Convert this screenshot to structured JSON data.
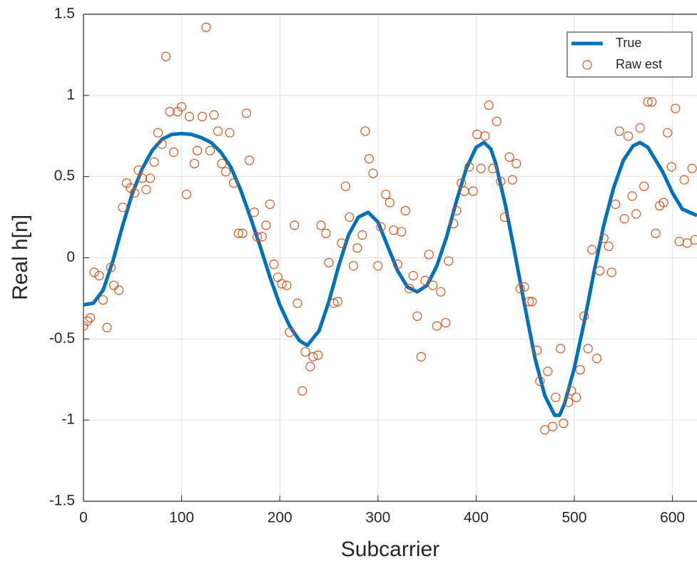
{
  "chart_data": {
    "type": "line",
    "xlabel": "Subcarrier",
    "ylabel": "Real h[n]",
    "xlim": [
      0,
      625
    ],
    "ylim": [
      -1.5,
      1.5
    ],
    "xticks": [
      0,
      100,
      200,
      300,
      400,
      500,
      600
    ],
    "yticks": [
      -1.5,
      -1,
      -0.5,
      0,
      0.5,
      1,
      1.5
    ],
    "grid": true,
    "legend": "upper right",
    "series": [
      {
        "name": "True",
        "color": "#0072BD",
        "mode": "line",
        "x": [
          0,
          10,
          20,
          30,
          40,
          50,
          60,
          70,
          80,
          90,
          100,
          110,
          120,
          130,
          140,
          150,
          160,
          170,
          180,
          190,
          200,
          210,
          220,
          228,
          240,
          250,
          260,
          270,
          280,
          290,
          300,
          310,
          320,
          330,
          340,
          350,
          360,
          370,
          380,
          390,
          400,
          408,
          415,
          420,
          430,
          440,
          450,
          460,
          470,
          480,
          485,
          490,
          500,
          510,
          520,
          530,
          540,
          550,
          560,
          567,
          575,
          590,
          600,
          610,
          625
        ],
        "values": [
          -0.29,
          -0.28,
          -0.2,
          -0.02,
          0.2,
          0.4,
          0.55,
          0.66,
          0.73,
          0.76,
          0.765,
          0.76,
          0.74,
          0.71,
          0.65,
          0.56,
          0.42,
          0.25,
          0.07,
          -0.12,
          -0.29,
          -0.42,
          -0.51,
          -0.54,
          -0.45,
          -0.27,
          -0.05,
          0.14,
          0.25,
          0.28,
          0.22,
          0.07,
          -0.08,
          -0.18,
          -0.21,
          -0.17,
          -0.05,
          0.13,
          0.35,
          0.55,
          0.68,
          0.71,
          0.67,
          0.58,
          0.32,
          0.01,
          -0.31,
          -0.62,
          -0.85,
          -0.97,
          -0.97,
          -0.9,
          -0.68,
          -0.4,
          -0.09,
          0.2,
          0.43,
          0.6,
          0.69,
          0.71,
          0.68,
          0.53,
          0.4,
          0.3,
          0.26
        ]
      },
      {
        "name": "Raw est",
        "color": "#D95319",
        "mode": "markers",
        "x": [
          0,
          4,
          7,
          11,
          16,
          20,
          24,
          28,
          31,
          36,
          40,
          44,
          48,
          52,
          56,
          60,
          64,
          68,
          72,
          76,
          80,
          84,
          88,
          92,
          96,
          100,
          105,
          108,
          113,
          116,
          121,
          125,
          129,
          133,
          137,
          141,
          145,
          149,
          153,
          158,
          162,
          166,
          169,
          174,
          177,
          182,
          186,
          190,
          194,
          198,
          202,
          207,
          210,
          215,
          218,
          223,
          226,
          231,
          234,
          239,
          242,
          247,
          250,
          255,
          259,
          263,
          267,
          271,
          275,
          279,
          284,
          287,
          291,
          295,
          300,
          303,
          308,
          312,
          316,
          320,
          324,
          328,
          332,
          336,
          340,
          344,
          348,
          352,
          356,
          360,
          364,
          369,
          372,
          377,
          380,
          385,
          388,
          393,
          397,
          401,
          405,
          409,
          413,
          417,
          421,
          425,
          429,
          434,
          437,
          441,
          445,
          449,
          454,
          457,
          462,
          465,
          470,
          473,
          478,
          481,
          486,
          489,
          494,
          497,
          502,
          506,
          510,
          514,
          518,
          523,
          526,
          530,
          535,
          538,
          542,
          546,
          551,
          555,
          559,
          563,
          567,
          571,
          575,
          579,
          583,
          587,
          591,
          595,
          599,
          603,
          607,
          612,
          615,
          620,
          623
        ],
        "values": [
          -0.42,
          -0.39,
          -0.37,
          -0.09,
          -0.11,
          -0.26,
          -0.43,
          -0.06,
          -0.17,
          -0.2,
          0.31,
          0.46,
          0.43,
          0.4,
          0.54,
          0.49,
          0.42,
          0.49,
          0.59,
          0.77,
          0.7,
          1.24,
          0.9,
          0.65,
          0.9,
          0.93,
          0.39,
          0.87,
          0.58,
          0.66,
          0.87,
          1.42,
          0.66,
          0.88,
          0.78,
          0.58,
          0.53,
          0.77,
          0.46,
          0.15,
          0.15,
          0.89,
          0.6,
          0.28,
          0.13,
          0.13,
          0.2,
          0.33,
          -0.04,
          -0.12,
          -0.16,
          -0.17,
          -0.46,
          0.2,
          -0.28,
          -0.82,
          -0.58,
          -0.67,
          -0.61,
          -0.6,
          0.2,
          0.15,
          -0.03,
          -0.28,
          -0.27,
          0.09,
          0.44,
          0.25,
          -0.05,
          0.06,
          0.14,
          0.78,
          0.61,
          0.52,
          -0.05,
          0.19,
          0.39,
          0.34,
          0.17,
          -0.04,
          0.16,
          0.29,
          -0.19,
          -0.11,
          -0.36,
          -0.61,
          -0.14,
          0.02,
          -0.17,
          -0.42,
          -0.21,
          -0.4,
          -0.02,
          0.21,
          0.29,
          0.46,
          0.41,
          0.56,
          0.41,
          0.76,
          0.55,
          0.75,
          0.94,
          0.55,
          0.84,
          0.47,
          0.25,
          0.62,
          0.48,
          0.58,
          -0.19,
          -0.18,
          -0.27,
          -0.27,
          -0.57,
          -0.76,
          -1.06,
          -0.7,
          -1.04,
          -0.86,
          -0.56,
          -1.02,
          -0.89,
          -0.82,
          -0.86,
          -0.69,
          -0.36,
          -0.56,
          0.05,
          -0.62,
          -0.08,
          0.12,
          0.07,
          -0.09,
          0.33,
          0.78,
          0.24,
          0.75,
          0.38,
          0.27,
          0.8,
          0.44,
          0.96,
          0.96,
          0.15,
          0.32,
          0.34,
          0.77,
          0.56,
          0.92,
          0.1,
          0.48,
          0.09,
          0.55,
          0.11
        ]
      }
    ]
  }
}
